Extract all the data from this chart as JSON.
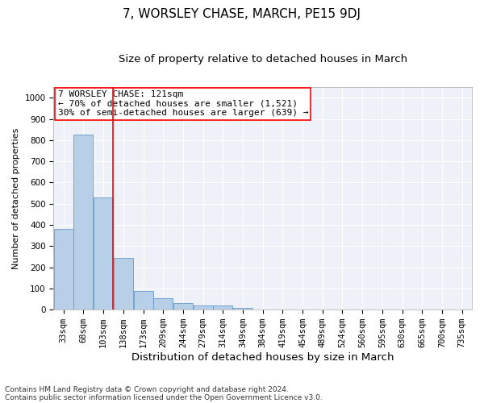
{
  "title": "7, WORSLEY CHASE, MARCH, PE15 9DJ",
  "subtitle": "Size of property relative to detached houses in March",
  "xlabel": "Distribution of detached houses by size in March",
  "ylabel": "Number of detached properties",
  "footnote1": "Contains HM Land Registry data © Crown copyright and database right 2024.",
  "footnote2": "Contains public sector information licensed under the Open Government Licence v3.0.",
  "annotation_line1": "7 WORSLEY CHASE: 121sqm",
  "annotation_line2": "← 70% of detached houses are smaller (1,521)",
  "annotation_line3": "30% of semi-detached houses are larger (639) →",
  "bar_color": "#b8cfe8",
  "bar_edge_color": "#6699cc",
  "vline_color": "red",
  "vline_x_index": 3,
  "background_color": "#eef2f8",
  "grid_color": "#ffffff",
  "categories": [
    "33sqm",
    "68sqm",
    "103sqm",
    "138sqm",
    "173sqm",
    "209sqm",
    "244sqm",
    "279sqm",
    "314sqm",
    "349sqm",
    "384sqm",
    "419sqm",
    "454sqm",
    "489sqm",
    "524sqm",
    "560sqm",
    "595sqm",
    "630sqm",
    "665sqm",
    "700sqm",
    "735sqm"
  ],
  "values": [
    380,
    825,
    530,
    245,
    90,
    55,
    30,
    20,
    20,
    10,
    0,
    0,
    0,
    0,
    0,
    0,
    0,
    0,
    0,
    0,
    0
  ],
  "ylim": [
    0,
    1050
  ],
  "yticks": [
    0,
    100,
    200,
    300,
    400,
    500,
    600,
    700,
    800,
    900,
    1000
  ],
  "title_fontsize": 11,
  "subtitle_fontsize": 9.5,
  "xlabel_fontsize": 9.5,
  "ylabel_fontsize": 8,
  "tick_fontsize": 7.5,
  "annotation_fontsize": 8,
  "footnote_fontsize": 6.5
}
